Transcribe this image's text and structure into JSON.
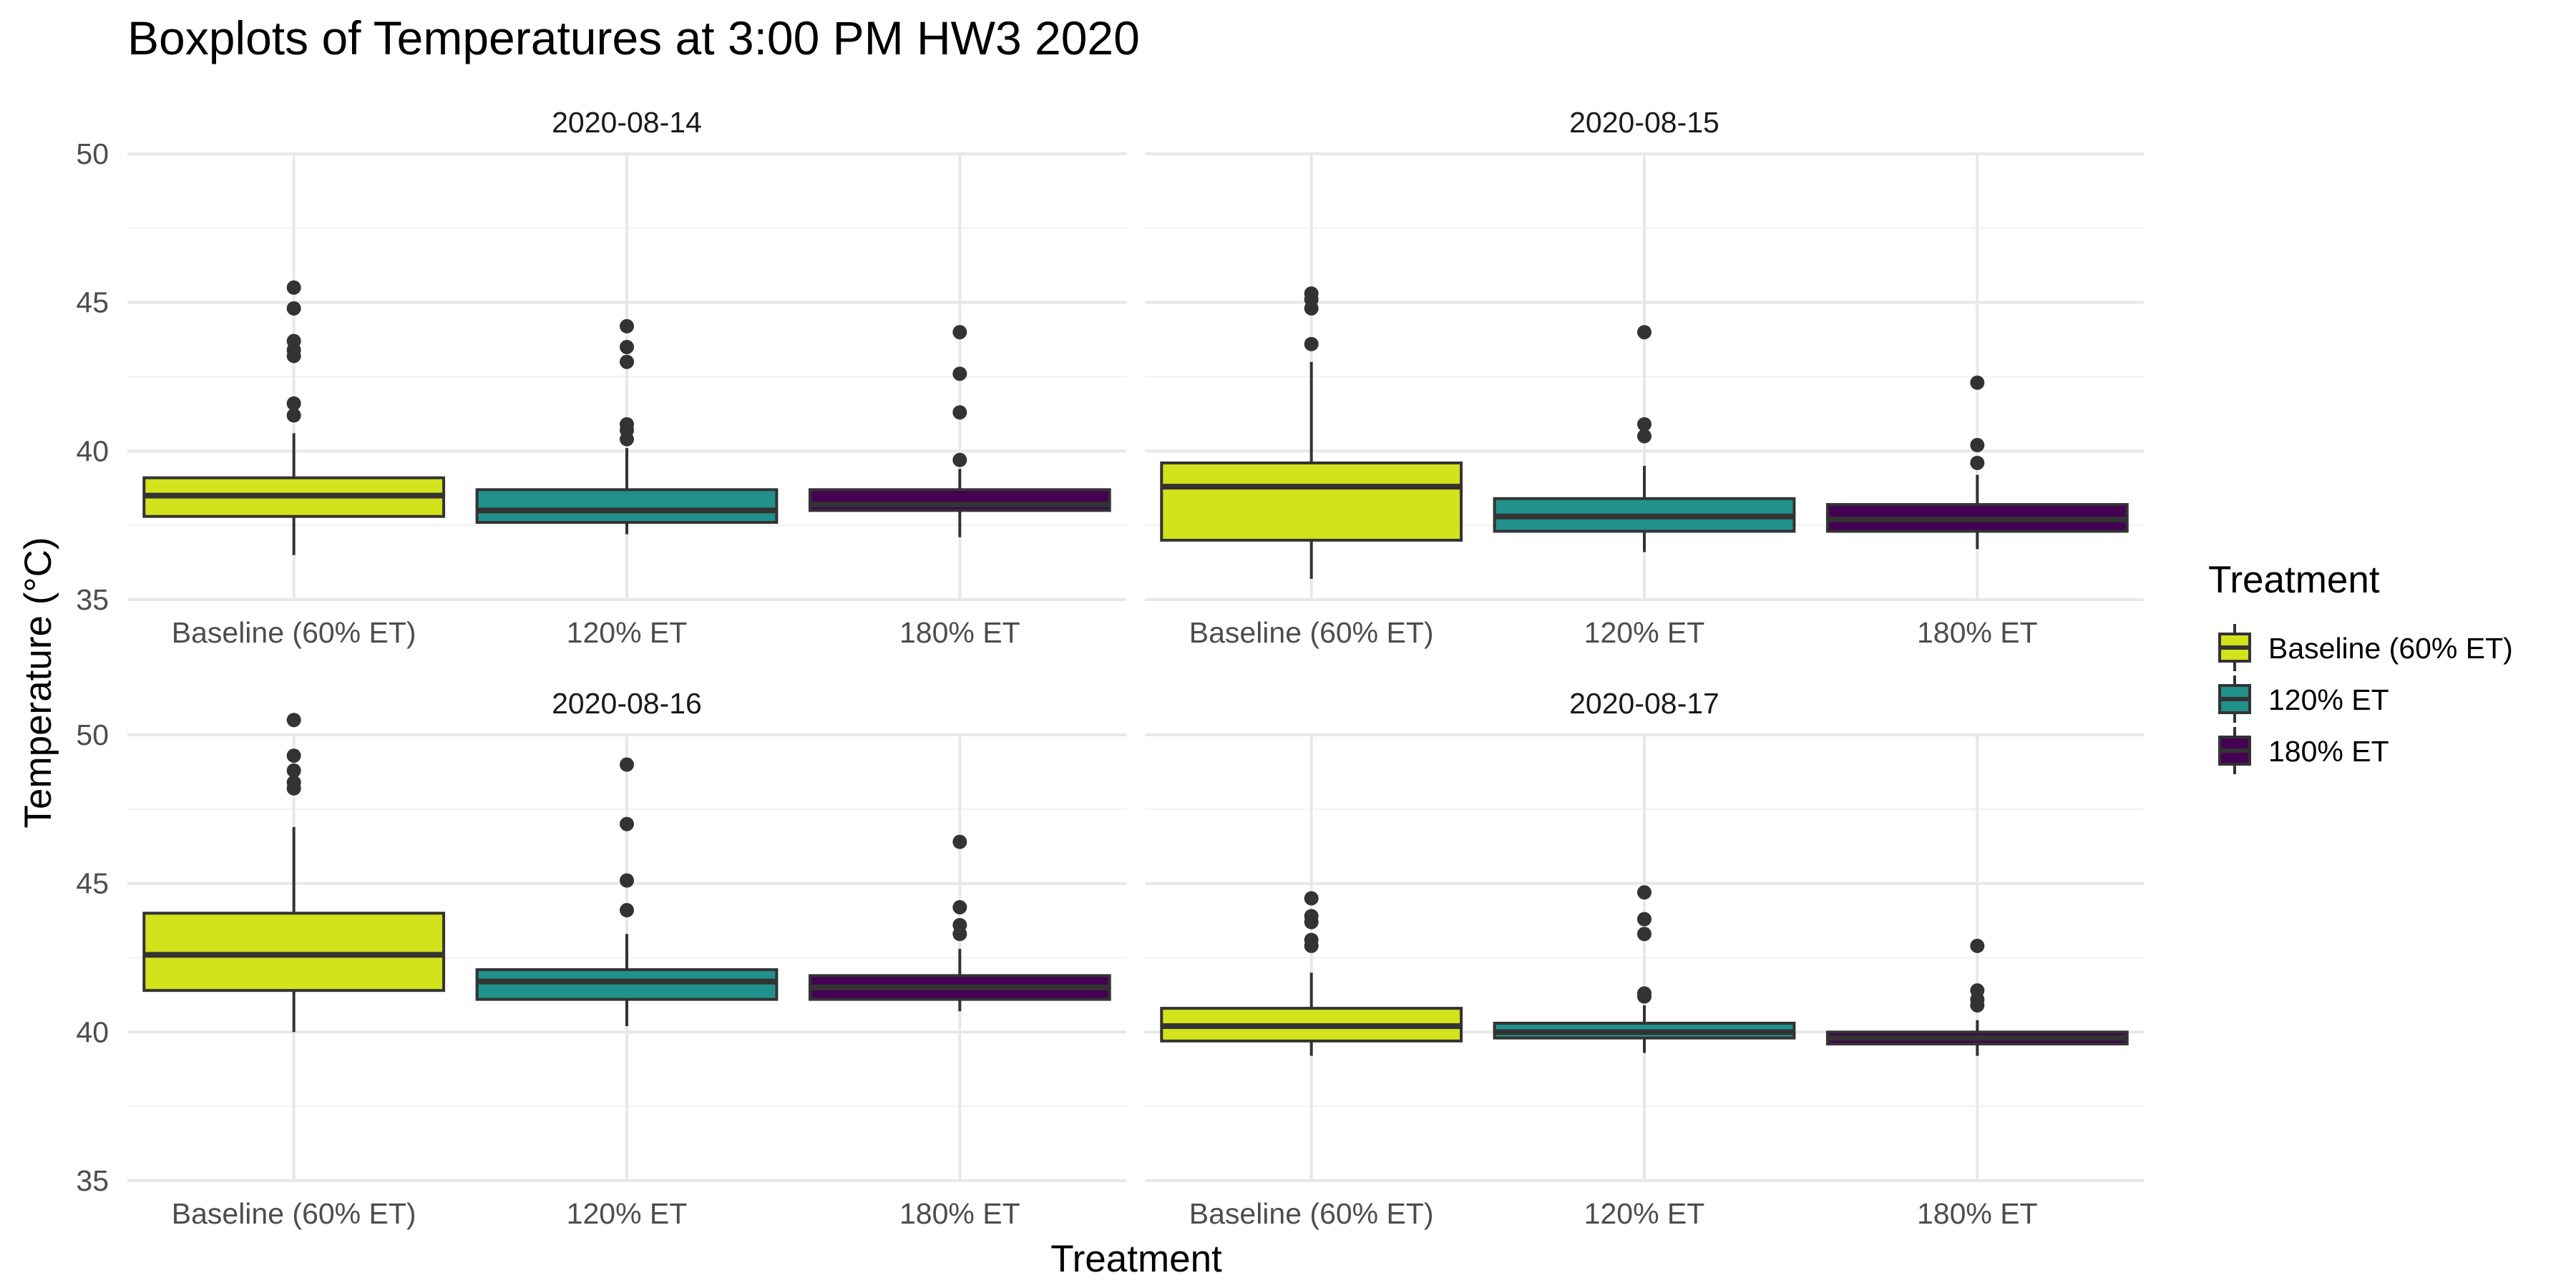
{
  "chart_data": {
    "type": "boxplot",
    "title": "Boxplots of Temperatures at 3:00 PM HW3 2020",
    "xlabel": "Treatment",
    "ylabel": "Temperature (°C)",
    "ylim": [
      35,
      50
    ],
    "yticks": [
      35,
      40,
      45,
      50
    ],
    "grid": true,
    "categories": [
      "Baseline (60% ET)",
      "120% ET",
      "180% ET"
    ],
    "legend": {
      "title": "Treatment",
      "position": "right",
      "items": [
        {
          "label": "Baseline (60% ET)",
          "color": "#d2e21b"
        },
        {
          "label": "120% ET",
          "color": "#21918c"
        },
        {
          "label": "180% ET",
          "color": "#440154"
        }
      ]
    },
    "panels": [
      {
        "label": "2020-08-14",
        "boxes": [
          {
            "category": "Baseline (60% ET)",
            "min": 36.5,
            "q1": 37.8,
            "median": 38.5,
            "q3": 39.1,
            "max": 40.6,
            "outliers": [
              41.2,
              41.6,
              43.2,
              43.4,
              43.7,
              44.8,
              45.5
            ]
          },
          {
            "category": "120% ET",
            "min": 37.2,
            "q1": 37.6,
            "median": 38.0,
            "q3": 38.7,
            "max": 40.1,
            "outliers": [
              40.4,
              40.7,
              40.9,
              43.0,
              43.5,
              44.2
            ]
          },
          {
            "category": "180% ET",
            "min": 37.1,
            "q1": 38.0,
            "median": 38.2,
            "q3": 38.7,
            "max": 39.4,
            "outliers": [
              39.7,
              41.3,
              42.6,
              44.0
            ]
          }
        ]
      },
      {
        "label": "2020-08-15",
        "boxes": [
          {
            "category": "Baseline (60% ET)",
            "min": 35.7,
            "q1": 37.0,
            "median": 38.8,
            "q3": 39.6,
            "max": 43.0,
            "outliers": [
              43.6,
              44.8,
              45.1,
              45.3
            ]
          },
          {
            "category": "120% ET",
            "min": 36.6,
            "q1": 37.3,
            "median": 37.8,
            "q3": 38.4,
            "max": 39.5,
            "outliers": [
              40.5,
              40.9,
              44.0
            ]
          },
          {
            "category": "180% ET",
            "min": 36.7,
            "q1": 37.3,
            "median": 37.7,
            "q3": 38.2,
            "max": 39.2,
            "outliers": [
              39.6,
              40.2,
              42.3
            ]
          }
        ]
      },
      {
        "label": "2020-08-16",
        "boxes": [
          {
            "category": "Baseline (60% ET)",
            "min": 40.0,
            "q1": 41.4,
            "median": 42.6,
            "q3": 44.0,
            "max": 46.9,
            "outliers": [
              48.2,
              48.4,
              48.8,
              49.3,
              50.5
            ]
          },
          {
            "category": "120% ET",
            "min": 40.2,
            "q1": 41.1,
            "median": 41.7,
            "q3": 42.1,
            "max": 43.3,
            "outliers": [
              44.1,
              45.1,
              47.0,
              49.0
            ]
          },
          {
            "category": "180% ET",
            "min": 40.7,
            "q1": 41.1,
            "median": 41.5,
            "q3": 41.9,
            "max": 42.8,
            "outliers": [
              43.3,
              43.6,
              44.2,
              46.4
            ]
          }
        ]
      },
      {
        "label": "2020-08-17",
        "boxes": [
          {
            "category": "Baseline (60% ET)",
            "min": 39.2,
            "q1": 39.7,
            "median": 40.2,
            "q3": 40.8,
            "max": 42.0,
            "outliers": [
              42.9,
              43.1,
              43.7,
              43.9,
              44.5
            ]
          },
          {
            "category": "120% ET",
            "min": 39.3,
            "q1": 39.8,
            "median": 40.0,
            "q3": 40.3,
            "max": 40.9,
            "outliers": [
              41.2,
              41.3,
              43.3,
              43.8,
              44.7
            ]
          },
          {
            "category": "180% ET",
            "min": 39.2,
            "q1": 39.6,
            "median": 39.8,
            "q3": 40.0,
            "max": 40.4,
            "outliers": [
              40.9,
              41.1,
              41.4,
              42.9
            ]
          }
        ]
      }
    ]
  }
}
